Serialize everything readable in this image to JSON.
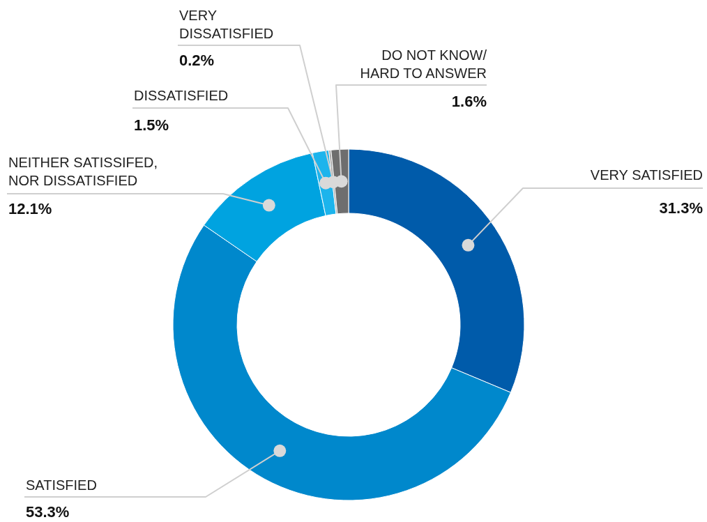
{
  "chart_data": {
    "type": "donut",
    "categories": [
      "VERY SATISFIED",
      "SATISFIED",
      "NEITHER SATISSIFED,\nNOR DISSATISFIED",
      "DISSATISFIED",
      "VERY\nDISSATISFIED",
      "DO NOT KNOW/\nHARD TO ANSWER"
    ],
    "values": [
      31.3,
      53.3,
      12.1,
      1.5,
      0.2,
      1.6
    ],
    "colors": [
      "#005baa",
      "#0088cc",
      "#00a3e0",
      "#1cb4ec",
      "#a6a6a6",
      "#6e6e6e"
    ],
    "value_labels": [
      "31.3%",
      "53.3%",
      "12.1%",
      "1.5%",
      "0.2%",
      "1.6%"
    ]
  }
}
